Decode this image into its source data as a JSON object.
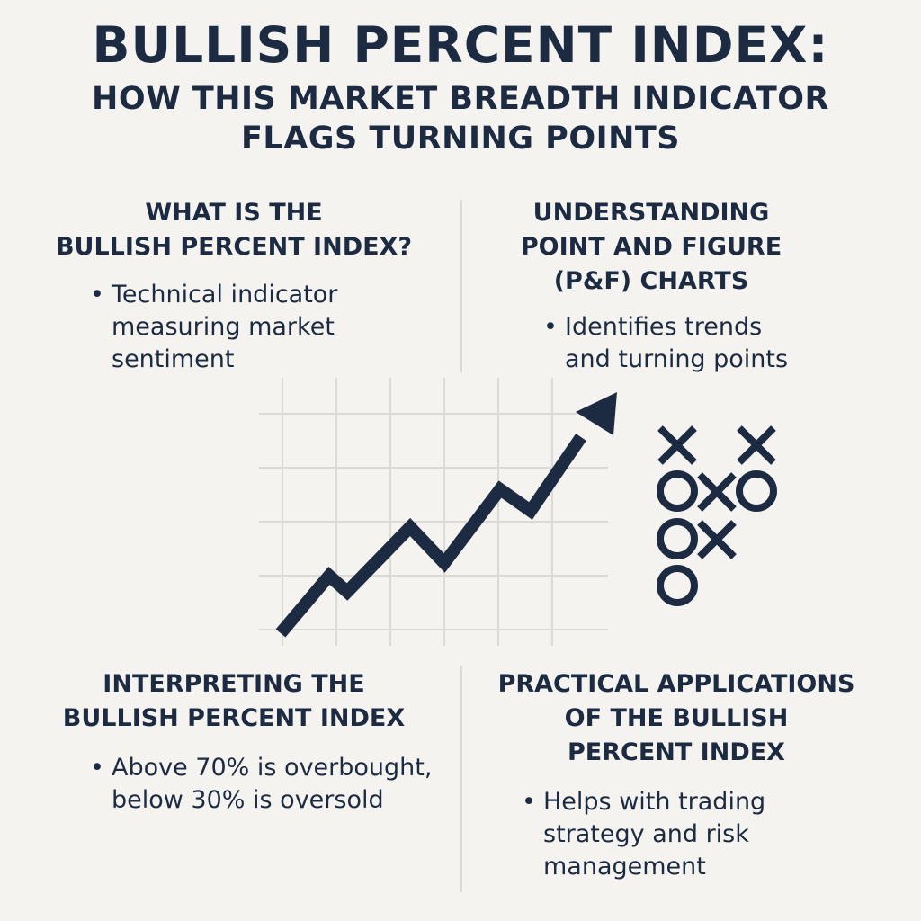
{
  "title": "BULLISH PERCENT INDEX:",
  "subtitle": {
    "line1": "HOW THIS MARKET BREADTH INDICATOR",
    "line2": "FLAGS TURNING POINTS"
  },
  "sections": {
    "what_is": {
      "heading_line1": "WHAT IS THE",
      "heading_line2": "BULLISH PERCENT INDEX?",
      "bullet_line1": "Technical indicator",
      "bullet_line2": "measuring market",
      "bullet_line3": "sentiment"
    },
    "pf_charts": {
      "heading_line1": "UNDERSTANDING",
      "heading_line2": "POINT AND FIGURE",
      "heading_line3": "(P&F) CHARTS",
      "bullet_line1": "Identifies trends",
      "bullet_line2": "and turning points"
    },
    "interpreting": {
      "heading_line1": "INTERPRETING THE",
      "heading_line2": "BULLISH PERCENT INDEX",
      "bullet_line1": "Above 70% is overbought,",
      "bullet_line2": "below 30% is oversold"
    },
    "applications": {
      "heading_line1": "PRACTICAL APPLICATIONS",
      "heading_line2": "OF THE BULLISH",
      "heading_line3": "PERCENT INDEX",
      "bullet_line1": "Helps with trading",
      "bullet_line2": "strategy and risk",
      "bullet_line3": "management"
    }
  },
  "bullet_symbol": "•",
  "colors": {
    "background": "#f4f3ef",
    "ink": "#1d2b42",
    "grid": "#dcdad4"
  },
  "icons": {
    "trend_chart": "rising-arrow-chart-icon",
    "pf_symbols": "x-and-o-icon"
  }
}
